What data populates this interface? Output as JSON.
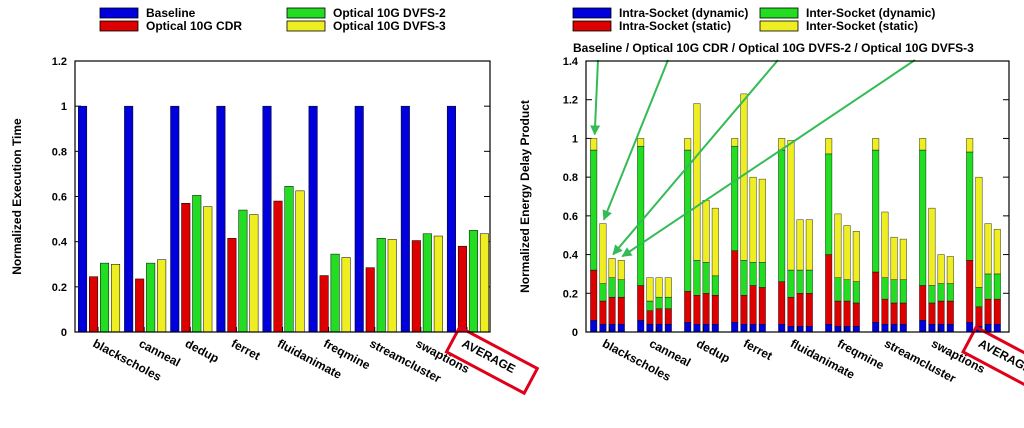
{
  "chart_data": [
    {
      "type": "bar",
      "title": "",
      "xlabel": "",
      "ylabel": "Normalized Execution Time",
      "ylim": [
        0,
        1.2
      ],
      "yticks": [
        "0",
        "0.2",
        "0.4",
        "0.6",
        "0.8",
        "1",
        "1.2"
      ],
      "grid": false,
      "legend_position": "top",
      "categories": [
        "blackscholes",
        "canneal",
        "dedup",
        "ferret",
        "fluidanimate",
        "freqmine",
        "streamcluster",
        "swaptions",
        "AVERAGE"
      ],
      "highlighted_category": "AVERAGE",
      "series": [
        {
          "name": "Baseline",
          "color": "#0000dd",
          "values": [
            1,
            1,
            1,
            1,
            1,
            1,
            1,
            1,
            1
          ]
        },
        {
          "name": "Optical 10G CDR",
          "color": "#dd0000",
          "values": [
            0.245,
            0.235,
            0.57,
            0.415,
            0.58,
            0.25,
            0.285,
            0.405,
            0.38
          ]
        },
        {
          "name": "Optical 10G DVFS-2",
          "color": "#22dd22",
          "values": [
            0.305,
            0.305,
            0.605,
            0.54,
            0.645,
            0.345,
            0.415,
            0.435,
            0.45
          ]
        },
        {
          "name": "Optical 10G DVFS-3",
          "color": "#eeee22",
          "values": [
            0.3,
            0.32,
            0.555,
            0.52,
            0.625,
            0.33,
            0.41,
            0.425,
            0.435
          ]
        }
      ]
    },
    {
      "type": "bar",
      "stacked": true,
      "title": "",
      "xlabel": "",
      "ylabel": "Normalized Energy Delay Product",
      "ylim": [
        0,
        1.4
      ],
      "yticks": [
        "0",
        "0.2",
        "0.4",
        "0.6",
        "0.8",
        "1",
        "1.2",
        "1.4"
      ],
      "grid": false,
      "legend_position": "top",
      "annotation": "Baseline / Optical 10G CDR / Optical 10G DVFS-2 / Optical 10G DVFS-3",
      "categories": [
        "blackscholes",
        "canneal",
        "dedup",
        "ferret",
        "fluidanimate",
        "freqmine",
        "streamcluster",
        "swaptions",
        "AVERAGE"
      ],
      "highlighted_category": "AVERAGE",
      "bar_configs": [
        "Baseline",
        "Optical 10G CDR",
        "Optical 10G DVFS-2",
        "Optical 10G DVFS-3"
      ],
      "series": [
        {
          "name": "Intra-Socket (dynamic)",
          "color": "#0000dd",
          "values": [
            [
              0.06,
              0.04,
              0.04,
              0.04
            ],
            [
              0.06,
              0.04,
              0.04,
              0.04
            ],
            [
              0.05,
              0.04,
              0.04,
              0.04
            ],
            [
              0.05,
              0.04,
              0.04,
              0.04
            ],
            [
              0.04,
              0.03,
              0.03,
              0.03
            ],
            [
              0.04,
              0.03,
              0.03,
              0.03
            ],
            [
              0.05,
              0.04,
              0.04,
              0.04
            ],
            [
              0.06,
              0.04,
              0.04,
              0.04
            ],
            [
              0.05,
              0.03,
              0.04,
              0.04
            ]
          ]
        },
        {
          "name": "Intra-Socket (static)",
          "color": "#dd0000",
          "values": [
            [
              0.26,
              0.12,
              0.14,
              0.14
            ],
            [
              0.18,
              0.07,
              0.08,
              0.08
            ],
            [
              0.16,
              0.15,
              0.16,
              0.15
            ],
            [
              0.37,
              0.15,
              0.2,
              0.19
            ],
            [
              0.22,
              0.15,
              0.17,
              0.17
            ],
            [
              0.36,
              0.13,
              0.13,
              0.12
            ],
            [
              0.26,
              0.13,
              0.11,
              0.11
            ],
            [
              0.18,
              0.11,
              0.12,
              0.12
            ],
            [
              0.32,
              0.1,
              0.13,
              0.13
            ]
          ]
        },
        {
          "name": "Inter-Socket (dynamic)",
          "color": "#22dd22",
          "values": [
            [
              0.62,
              0.09,
              0.1,
              0.09
            ],
            [
              0.72,
              0.05,
              0.06,
              0.06
            ],
            [
              0.73,
              0.18,
              0.16,
              0.1
            ],
            [
              0.54,
              0.18,
              0.12,
              0.13
            ],
            [
              0.68,
              0.14,
              0.12,
              0.12
            ],
            [
              0.52,
              0.12,
              0.11,
              0.11
            ],
            [
              0.63,
              0.11,
              0.12,
              0.12
            ],
            [
              0.7,
              0.09,
              0.09,
              0.09
            ],
            [
              0.56,
              0.1,
              0.13,
              0.13
            ]
          ]
        },
        {
          "name": "Inter-Socket (static)",
          "color": "#eeee22",
          "values": [
            [
              0.06,
              0.31,
              0.1,
              0.1
            ],
            [
              0.04,
              0.12,
              0.1,
              0.1
            ],
            [
              0.06,
              0.81,
              0.32,
              0.35
            ],
            [
              0.04,
              0.86,
              0.44,
              0.43
            ],
            [
              0.06,
              0.67,
              0.26,
              0.26
            ],
            [
              0.08,
              0.33,
              0.28,
              0.26
            ],
            [
              0.06,
              0.34,
              0.22,
              0.21
            ],
            [
              0.06,
              0.4,
              0.15,
              0.14
            ],
            [
              0.07,
              0.57,
              0.26,
              0.23
            ]
          ]
        }
      ]
    }
  ]
}
